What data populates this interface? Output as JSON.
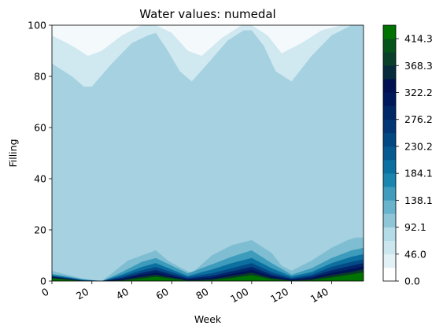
{
  "chart_data": {
    "type": "contour",
    "title": "Water values: numedal",
    "xlabel": "Week",
    "ylabel": "Filling",
    "xlim": [
      0,
      156
    ],
    "ylim": [
      0,
      100
    ],
    "x_ticks": [
      "0",
      "20",
      "40",
      "60",
      "80",
      "100",
      "120",
      "140"
    ],
    "y_ticks": [
      "0",
      "20",
      "40",
      "60",
      "80",
      "100"
    ],
    "colorbar": {
      "range": [
        0,
        437.3
      ],
      "tick_labels": [
        "0.0",
        "46.0",
        "92.1",
        "138.1",
        "184.1",
        "230.2",
        "276.2",
        "322.2",
        "368.3",
        "414.3"
      ],
      "colormap": "ocean_r"
    },
    "contour_levels": [
      {
        "level": 23.0,
        "boundary_x": [
          0,
          10,
          18,
          25,
          35,
          45,
          52,
          60,
          68,
          75,
          85,
          95,
          100,
          108,
          115,
          125,
          135,
          145,
          156
        ],
        "boundary_y": [
          96,
          92,
          88,
          90,
          96,
          100,
          100,
          97,
          90,
          88,
          95,
          100,
          100,
          96,
          89,
          93,
          98,
          100,
          100
        ]
      },
      {
        "level": 46.0,
        "boundary_x": [
          0,
          10,
          16,
          20,
          30,
          40,
          48,
          52,
          58,
          64,
          70,
          78,
          88,
          96,
          100,
          106,
          112,
          120,
          130,
          140,
          150,
          156
        ],
        "boundary_y": [
          85,
          80,
          76,
          76,
          85,
          93,
          96,
          97,
          90,
          82,
          78,
          85,
          94,
          98,
          98,
          92,
          82,
          78,
          88,
          96,
          100,
          100
        ]
      },
      {
        "level": 69.0,
        "boundary_x": [
          0,
          156
        ],
        "boundary_y": [
          0,
          0
        ]
      },
      {
        "level": 92.1,
        "boundary_x": [
          0,
          5,
          10,
          15,
          20,
          25,
          30,
          38,
          45,
          52,
          58,
          65,
          70,
          80,
          90,
          100,
          110,
          115,
          120,
          130,
          140,
          148,
          152,
          156
        ],
        "boundary_y": [
          4,
          3,
          2,
          1,
          0,
          0,
          3,
          8,
          10,
          12,
          8,
          5,
          3,
          10,
          14,
          16,
          11,
          6,
          4,
          8,
          13,
          16,
          17,
          17
        ]
      },
      {
        "level": 138.1,
        "boundary_x": [
          0,
          5,
          10,
          15,
          25,
          35,
          45,
          52,
          60,
          68,
          80,
          90,
          100,
          110,
          120,
          130,
          140,
          150,
          156
        ],
        "boundary_y": [
          2.8,
          2.2,
          1.5,
          0.8,
          0,
          3.5,
          7.5,
          9,
          6,
          3,
          6.5,
          9.5,
          12,
          7,
          2.5,
          5,
          9,
          12,
          13
        ]
      },
      {
        "level": 184.1,
        "boundary_x": [
          0,
          5,
          10,
          15,
          25,
          35,
          45,
          52,
          60,
          68,
          80,
          90,
          100,
          110,
          120,
          130,
          140,
          150,
          156
        ],
        "boundary_y": [
          2.3,
          1.8,
          1.2,
          0.5,
          0,
          2.5,
          5.5,
          7,
          4.5,
          2,
          4.5,
          7,
          9,
          5,
          1.8,
          3.5,
          7,
          9.5,
          10.5
        ]
      },
      {
        "level": 230.2,
        "boundary_x": [
          0,
          5,
          10,
          15,
          25,
          35,
          45,
          52,
          60,
          68,
          80,
          90,
          100,
          110,
          120,
          130,
          140,
          150,
          156
        ],
        "boundary_y": [
          2,
          1.5,
          1,
          0.3,
          0,
          1.8,
          4.2,
          5.5,
          3.5,
          1.5,
          3,
          5,
          7,
          3.5,
          1.2,
          2.5,
          5.5,
          7.5,
          8.5
        ]
      },
      {
        "level": 276.2,
        "boundary_x": [
          0,
          5,
          10,
          15,
          25,
          35,
          45,
          52,
          60,
          68,
          80,
          90,
          100,
          110,
          120,
          130,
          140,
          150,
          156
        ],
        "boundary_y": [
          1.8,
          1.3,
          0.8,
          0.2,
          0,
          1.2,
          3.2,
          4.3,
          2.6,
          1,
          2,
          3.8,
          5.5,
          2.5,
          0.8,
          1.8,
          4.2,
          6,
          7
        ]
      },
      {
        "level": 322.2,
        "boundary_x": [
          0,
          5,
          10,
          15,
          25,
          35,
          45,
          52,
          60,
          68,
          80,
          90,
          100,
          110,
          120,
          130,
          140,
          150,
          156
        ],
        "boundary_y": [
          1.5,
          1.1,
          0.6,
          0.1,
          0,
          0.8,
          2.4,
          3.3,
          1.9,
          0.6,
          1.3,
          2.8,
          4.3,
          1.8,
          0.5,
          1.2,
          3.2,
          4.7,
          5.7
        ]
      },
      {
        "level": 368.3,
        "boundary_x": [
          0,
          5,
          10,
          15,
          25,
          35,
          45,
          52,
          60,
          68,
          80,
          90,
          100,
          110,
          120,
          130,
          140,
          150,
          156
        ],
        "boundary_y": [
          1.3,
          0.9,
          0.5,
          0.1,
          0,
          0.4,
          1.7,
          2.5,
          1.4,
          0.3,
          0.7,
          2,
          3.3,
          1.2,
          0.2,
          0.7,
          2.3,
          3.6,
          4.6
        ]
      },
      {
        "level": 414.3,
        "boundary_x": [
          0,
          5,
          10,
          15,
          25,
          35,
          45,
          52,
          60,
          68,
          80,
          90,
          100,
          110,
          120,
          130,
          140,
          150,
          156
        ],
        "boundary_y": [
          1,
          0.7,
          0.4,
          0.05,
          0,
          0.1,
          1,
          1.7,
          0.9,
          0.1,
          0.3,
          1.2,
          2.3,
          0.7,
          0.1,
          0.3,
          1.4,
          2.6,
          3.4
        ]
      }
    ],
    "colors": {
      "background_top": "#f4f9fb",
      "main_fill": "#a5d1e0",
      "lvl_23": "#d0e8f0",
      "lvl_46": "#bddfeb",
      "lvl_69": "#a5d1e0",
      "lvl_92": "#7fbed2",
      "lvl_138": "#3d9bbc",
      "lvl_184": "#0b6fa0",
      "lvl_230": "#034a87",
      "lvl_276": "#012568",
      "lvl_322": "#001256",
      "lvl_368": "#0a3a2a",
      "lvl_414": "#007200"
    },
    "grid": false,
    "legend": "colorbar-right"
  }
}
